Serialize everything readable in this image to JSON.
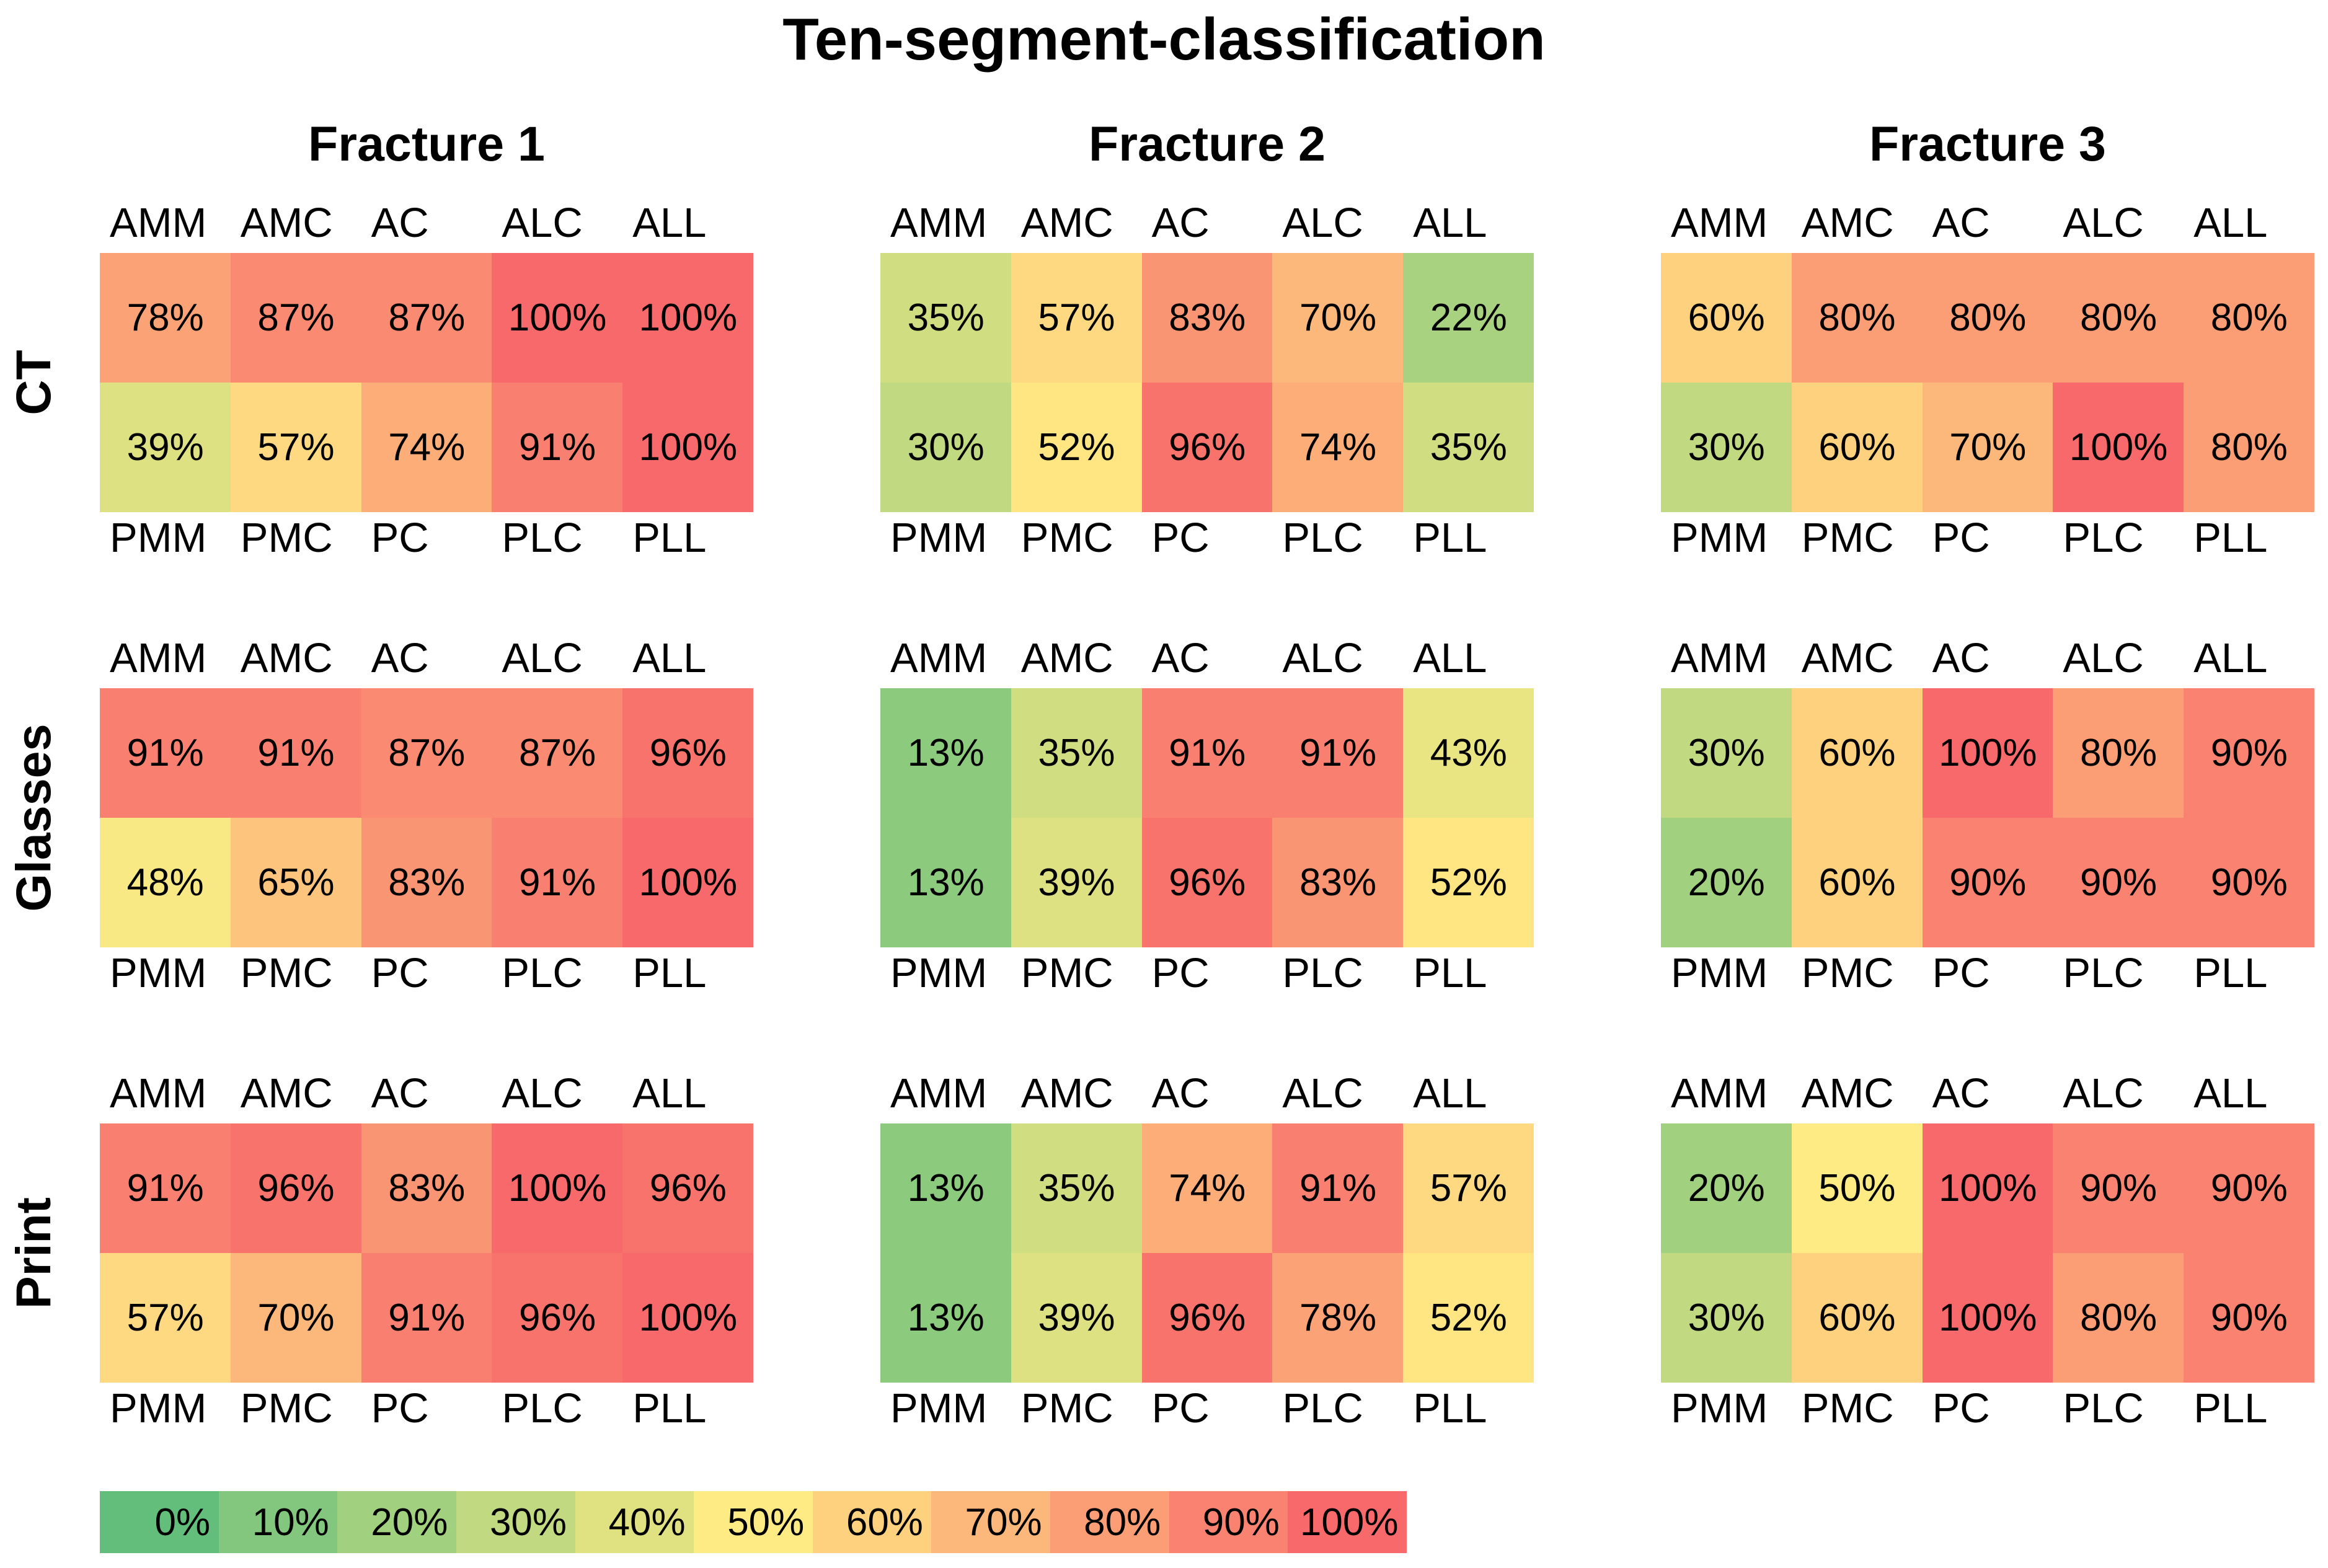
{
  "chart_data": {
    "type": "heatmap",
    "title": "Ten-segment-classification",
    "columns": [
      "Fracture 1",
      "Fracture 2",
      "Fracture 3"
    ],
    "rows": [
      "CT",
      "Glasses",
      "Print"
    ],
    "top_labels": [
      "AMM",
      "AMC",
      "AC",
      "ALC",
      "ALL"
    ],
    "bottom_labels": [
      "PMM",
      "PMC",
      "PC",
      "PLC",
      "PLL"
    ],
    "panels": [
      {
        "row": "CT",
        "column": "Fracture 1",
        "anterior": [
          78,
          87,
          87,
          100,
          100
        ],
        "posterior": [
          39,
          57,
          74,
          91,
          100
        ]
      },
      {
        "row": "CT",
        "column": "Fracture 2",
        "anterior": [
          35,
          57,
          83,
          70,
          22
        ],
        "posterior": [
          30,
          52,
          96,
          74,
          35
        ]
      },
      {
        "row": "CT",
        "column": "Fracture 3",
        "anterior": [
          60,
          80,
          80,
          80,
          80
        ],
        "posterior": [
          30,
          60,
          70,
          100,
          80
        ]
      },
      {
        "row": "Glasses",
        "column": "Fracture 1",
        "anterior": [
          91,
          91,
          87,
          87,
          96
        ],
        "posterior": [
          48,
          65,
          83,
          91,
          100
        ]
      },
      {
        "row": "Glasses",
        "column": "Fracture 2",
        "anterior": [
          13,
          35,
          91,
          91,
          43
        ],
        "posterior": [
          13,
          39,
          96,
          83,
          52
        ]
      },
      {
        "row": "Glasses",
        "column": "Fracture 3",
        "anterior": [
          30,
          60,
          100,
          80,
          90
        ],
        "posterior": [
          20,
          60,
          90,
          90,
          90
        ]
      },
      {
        "row": "Print",
        "column": "Fracture 1",
        "anterior": [
          91,
          96,
          83,
          100,
          96
        ],
        "posterior": [
          57,
          70,
          91,
          96,
          100
        ]
      },
      {
        "row": "Print",
        "column": "Fracture 2",
        "anterior": [
          13,
          35,
          74,
          91,
          57
        ],
        "posterior": [
          13,
          39,
          96,
          78,
          52
        ]
      },
      {
        "row": "Print",
        "column": "Fracture 3",
        "anterior": [
          20,
          50,
          100,
          90,
          90
        ],
        "posterior": [
          30,
          60,
          100,
          80,
          90
        ]
      }
    ],
    "legend": {
      "placement": "bottom",
      "values": [
        0,
        10,
        20,
        30,
        40,
        50,
        60,
        70,
        80,
        90,
        100
      ],
      "labels": [
        "0%",
        "10%",
        "20%",
        "30%",
        "40%",
        "50%",
        "60%",
        "70%",
        "80%",
        "90%",
        "100%"
      ]
    },
    "value_suffix": "%",
    "colors": {
      "low": "#63be7b",
      "mid": "#ffeb84",
      "high": "#f8696b"
    }
  }
}
